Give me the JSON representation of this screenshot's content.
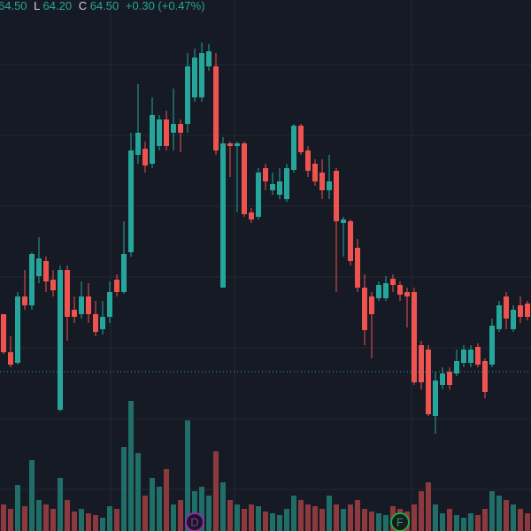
{
  "chart_data": {
    "type": "candlestick",
    "ylim": [
      62.7,
      68.7
    ],
    "up_color": "#26a69a",
    "down_color": "#ef5350",
    "volume_up_color": "#1f6e68",
    "volume_down_color": "#8c3a3d",
    "open": [
      65.15,
      64.72,
      64.6,
      65.35,
      65.25,
      65.58,
      65.75,
      65.54,
      64.07,
      65.65,
      65.2,
      65.15,
      65.35,
      65.15,
      64.98,
      65.12,
      65.54,
      65.4,
      65.85,
      66.95,
      67.02,
      66.85,
      67.05,
      67.35,
      67.2,
      67.3,
      67.3,
      67.6,
      67.6,
      67.95,
      67.95,
      65.45,
      67.08,
      67.05,
      67.08,
      66.3,
      66.25,
      66.8,
      66.55,
      66.5,
      66.45,
      66.78,
      67.28,
      67.0,
      66.85,
      66.75,
      66.55,
      66.77,
      66.18,
      66.2,
      65.9,
      65.45,
      65.35,
      65.33,
      65.33,
      65.55,
      65.48,
      65.4,
      65.4,
      64.8,
      64.75,
      64.0,
      64.35,
      64.5,
      64.48,
      64.6,
      64.6,
      64.78,
      64.62,
      64.58,
      64.98,
      65.35,
      64.98,
      65.25,
      65.27
    ],
    "high": [
      65.15,
      64.9,
      65.4,
      65.65,
      65.85,
      66.02,
      65.8,
      65.65,
      65.7,
      65.7,
      65.35,
      65.52,
      65.5,
      65.3,
      65.3,
      65.52,
      65.6,
      66.2,
      67.2,
      67.75,
      67.1,
      67.6,
      67.4,
      67.45,
      67.7,
      67.35,
      68.1,
      68.15,
      68.22,
      68.2,
      68.1,
      67.15,
      67.1,
      67.1,
      67.1,
      66.35,
      66.8,
      66.85,
      66.75,
      66.8,
      66.85,
      67.3,
      67.3,
      67.05,
      66.9,
      66.9,
      66.95,
      66.8,
      66.25,
      66.22,
      66.0,
      65.6,
      65.4,
      65.52,
      65.58,
      65.6,
      65.52,
      65.45,
      65.45,
      64.85,
      64.8,
      64.5,
      64.55,
      64.55,
      64.75,
      64.8,
      64.8,
      64.82,
      64.65,
      65.1,
      65.3,
      65.4,
      65.25,
      65.35,
      65.3
    ],
    "low": [
      64.7,
      64.55,
      64.58,
      65.2,
      65.2,
      65.5,
      65.4,
      65.35,
      64.05,
      64.85,
      65.05,
      65.1,
      65.05,
      64.9,
      64.92,
      65.05,
      65.35,
      65.38,
      65.8,
      66.85,
      66.75,
      66.8,
      67.0,
      67.0,
      67.0,
      66.98,
      67.2,
      67.55,
      67.55,
      67.9,
      66.95,
      65.45,
      66.7,
      66.3,
      66.25,
      66.18,
      66.22,
      66.55,
      66.5,
      66.45,
      66.42,
      66.75,
      66.95,
      66.7,
      66.6,
      66.45,
      66.45,
      65.4,
      65.8,
      65.7,
      65.4,
      64.8,
      64.65,
      65.3,
      65.3,
      65.4,
      65.3,
      65.0,
      64.35,
      64.3,
      64.0,
      63.8,
      64.3,
      64.3,
      64.45,
      64.55,
      64.55,
      64.55,
      64.2,
      64.55,
      64.95,
      64.98,
      64.95,
      65.05,
      65.08
    ],
    "close": [
      64.72,
      64.58,
      65.35,
      65.25,
      65.83,
      65.78,
      65.52,
      65.42,
      65.65,
      65.12,
      65.12,
      65.35,
      65.15,
      64.95,
      65.12,
      65.4,
      65.4,
      65.83,
      67.0,
      67.2,
      66.83,
      67.4,
      67.35,
      67.05,
      67.3,
      67.2,
      67.95,
      68.05,
      68.1,
      68.12,
      67.0,
      67.08,
      67.05,
      67.08,
      66.28,
      66.22,
      66.75,
      66.65,
      66.62,
      66.65,
      66.8,
      67.28,
      66.98,
      66.77,
      66.65,
      66.55,
      66.65,
      66.2,
      66.22,
      65.75,
      65.45,
      64.97,
      65.15,
      65.48,
      65.5,
      65.48,
      65.37,
      65.35,
      64.38,
      64.38,
      64.02,
      64.4,
      64.48,
      64.35,
      64.62,
      64.75,
      64.75,
      64.58,
      64.27,
      65.02,
      65.25,
      65.1,
      65.2,
      65.12,
      65.12
    ],
    "volume": [
      30,
      25,
      52,
      28,
      80,
      35,
      30,
      25,
      60,
      35,
      22,
      25,
      20,
      18,
      15,
      28,
      25,
      95,
      147,
      88,
      40,
      60,
      50,
      70,
      30,
      35,
      125,
      45,
      50,
      40,
      90,
      55,
      35,
      30,
      25,
      30,
      28,
      22,
      20,
      18,
      25,
      40,
      35,
      30,
      28,
      25,
      40,
      30,
      25,
      30,
      35,
      25,
      22,
      20,
      18,
      28,
      25,
      22,
      30,
      45,
      55,
      30,
      20,
      25,
      18,
      15,
      20,
      18,
      25,
      45,
      40,
      35,
      30,
      25,
      20
    ],
    "header": {
      "open": {
        "value": 64.5,
        "label": "64.50"
      },
      "low_key": "L",
      "low": {
        "value": 64.2,
        "label": "64.20"
      },
      "close_key": "C",
      "close": {
        "value": 64.5,
        "label": "64.50"
      },
      "change": "+0.30 (+0.47%)"
    },
    "markers": [
      {
        "label": "D",
        "color": "#9c27b0"
      },
      {
        "label": "F",
        "color": "#22ab3b"
      }
    ]
  }
}
